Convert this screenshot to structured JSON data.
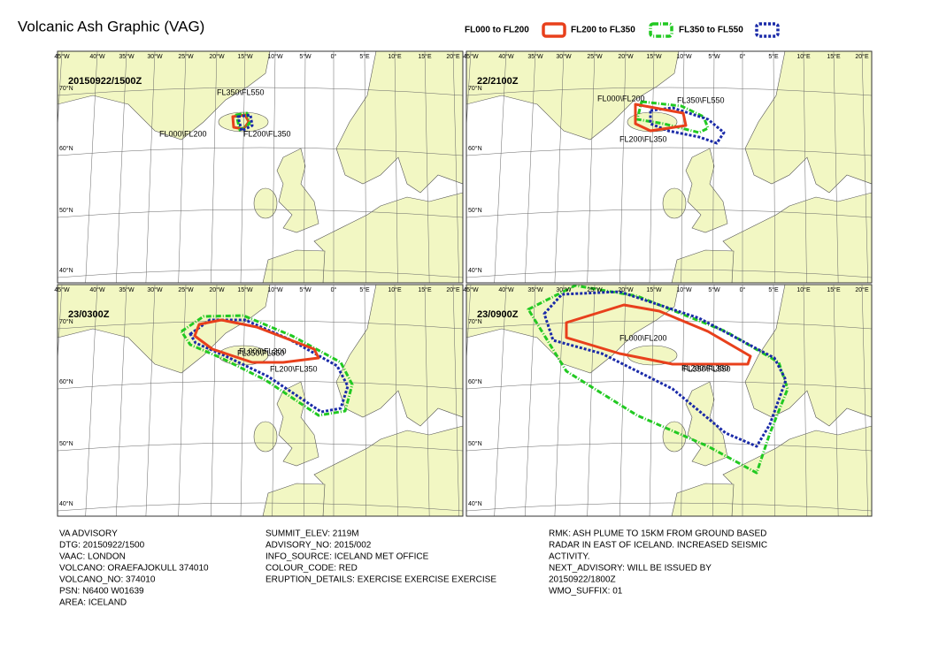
{
  "title": "Volcanic Ash Graphic (VAG)",
  "legend": [
    "FL000 to FL200",
    "FL200 to FL350",
    "FL350 to FL550"
  ],
  "longitude_labels": [
    "45°W",
    "40°W",
    "35°W",
    "30°W",
    "25°W",
    "20°W",
    "15°W",
    "10°W",
    "5°W",
    "0°",
    "5°E",
    "10°E",
    "15°E",
    "20°E"
  ],
  "latitude_labels": [
    "70°N",
    "60°N",
    "50°N",
    "40°N"
  ],
  "panels": [
    {
      "time": "20150922/1500Z",
      "labels": [
        "FL350\\FL550",
        "FL000\\FL200",
        "FL200\\FL350"
      ]
    },
    {
      "time": "22/2100Z",
      "labels": [
        "FL000\\FL200",
        "FL350\\FL550",
        "FL200\\FL350"
      ]
    },
    {
      "time": "23/0300Z",
      "labels": [
        "FL000\\FL200",
        "FL350\\FL550",
        "FL200\\FL350"
      ]
    },
    {
      "time": "23/0900Z",
      "labels": [
        "FL000\\FL200",
        "FL200\\FL350",
        "FL350\\FL550"
      ]
    }
  ],
  "advisory": {
    "columns": [
      [
        "VA ADVISORY",
        "DTG: 20150922/1500",
        "VAAC: LONDON",
        "VOLCANO: ORAEFAJOKULL 374010",
        "VOLCANO_NO: 374010",
        "PSN: N6400 W01639",
        "AREA: ICELAND"
      ],
      [
        "SUMMIT_ELEV: 2119M",
        "ADVISORY_NO: 2015/002",
        "INFO_SOURCE: ICELAND MET OFFICE",
        "COLOUR_CODE: RED",
        "ERUPTION_DETAILS: EXERCISE EXERCISE EXERCISE"
      ],
      [
        "RMK: ASH PLUME TO 15KM FROM GROUND BASED",
        "RADAR IN EAST OF ICELAND. INCREASED SEISMIC",
        "ACTIVITY.",
        "NEXT_ADVISORY: WILL BE ISSUED BY",
        "20150922/1800Z",
        "WMO_SUFFIX: 01"
      ]
    ]
  }
}
